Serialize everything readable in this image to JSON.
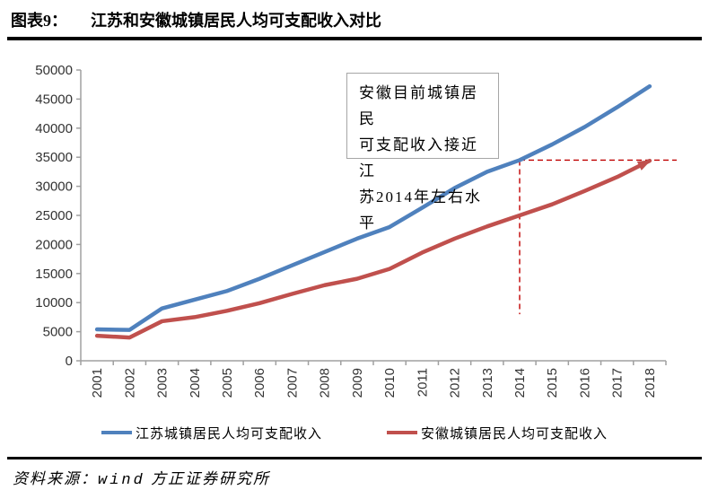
{
  "header": {
    "figure_label": "图表9：",
    "title": "江苏和安徽城镇居民人均可支配收入对比"
  },
  "annotation": {
    "lines": [
      "安徽目前城镇居民",
      "可支配收入接近江",
      "苏2014年左右水平"
    ]
  },
  "chart_data": {
    "type": "line",
    "x": [
      2001,
      2002,
      2003,
      2004,
      2005,
      2006,
      2007,
      2008,
      2009,
      2010,
      2011,
      2012,
      2013,
      2014,
      2015,
      2016,
      2017,
      2018
    ],
    "series": [
      {
        "name": "江苏城镇居民人均可支配收入",
        "color": "#4F81BD",
        "values": [
          5400,
          5300,
          9000,
          10500,
          12000,
          14100,
          16400,
          18700,
          21000,
          23000,
          26300,
          29700,
          32500,
          34500,
          37200,
          40200,
          43600,
          47200
        ],
        "arrow_end": false
      },
      {
        "name": "安徽城镇居民人均可支配收入",
        "color": "#C0504D",
        "values": [
          4300,
          4000,
          6800,
          7500,
          8600,
          9900,
          11500,
          13000,
          14100,
          15800,
          18600,
          21000,
          23100,
          25000,
          26900,
          29200,
          31600,
          34400
        ],
        "arrow_end": true
      }
    ],
    "ylim": [
      0,
      50000
    ],
    "ytick_step": 5000,
    "grid": false,
    "legend_position": "bottom",
    "axis_color": "#a0a0a0",
    "tick_label_color": "#333333",
    "dashed_guide": {
      "year": 2014,
      "level": 34500,
      "drop_level": 8000,
      "color": "#C00000"
    }
  },
  "footer": {
    "source_prefix": "资料来源：",
    "source_wind": "wind",
    "source_rest": " 方正证券研究所"
  }
}
